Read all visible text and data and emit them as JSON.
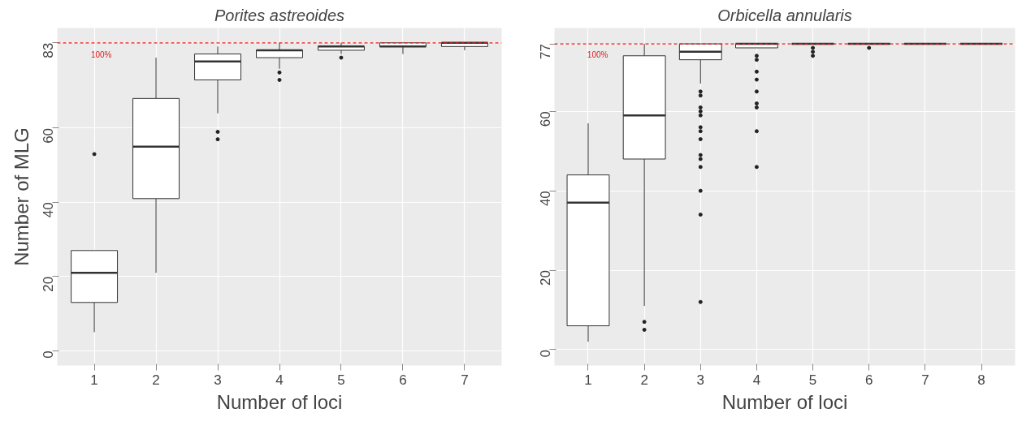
{
  "chart_data": [
    {
      "type": "box",
      "title": "Porites astreoides",
      "xlabel": "Number of loci",
      "ylabel": "Number of MLG",
      "categories": [
        "1",
        "2",
        "3",
        "4",
        "5",
        "6",
        "7"
      ],
      "boxes": [
        {
          "low": 5,
          "q1": 13,
          "median": 21,
          "q3": 27,
          "high": 27,
          "outliers": [
            53
          ]
        },
        {
          "low": 21,
          "q1": 41,
          "median": 55,
          "q3": 68,
          "high": 79
        },
        {
          "low": 64,
          "q1": 73,
          "median": 78,
          "q3": 80,
          "high": 82,
          "outliers": [
            59,
            57
          ]
        },
        {
          "low": 76,
          "q1": 79,
          "median": 81,
          "q3": 81,
          "high": 83,
          "outliers": [
            75,
            73
          ]
        },
        {
          "low": 80,
          "q1": 81,
          "median": 82,
          "q3": 82,
          "high": 83,
          "outliers": [
            79
          ]
        },
        {
          "low": 80,
          "q1": 82,
          "median": 82,
          "q3": 83,
          "high": 83
        },
        {
          "low": 81,
          "q1": 82,
          "median": 83,
          "q3": 83,
          "high": 83
        }
      ],
      "ylim": [
        -4,
        87
      ],
      "yticks": [
        0,
        20,
        40,
        60,
        83
      ],
      "grid": true,
      "annotations": [
        "100%"
      ],
      "ref_lines": [
        {
          "axis": "y",
          "value": 83,
          "color": "#e41a1c",
          "line_style": "dashed"
        }
      ]
    },
    {
      "type": "box",
      "title": "Orbicella annularis",
      "xlabel": "Number of loci",
      "categories": [
        "1",
        "2",
        "3",
        "4",
        "5",
        "6",
        "7",
        "8"
      ],
      "boxes": [
        {
          "low": 2,
          "q1": 6,
          "median": 37,
          "q3": 44,
          "high": 57
        },
        {
          "low": 11,
          "q1": 48,
          "median": 59,
          "q3": 74,
          "high": 77,
          "outliers": [
            7,
            5
          ]
        },
        {
          "low": 67,
          "q1": 73,
          "median": 75,
          "q3": 77,
          "high": 77,
          "outliers": [
            65,
            64,
            61,
            60,
            59,
            56,
            55,
            53,
            49,
            48,
            46,
            40,
            34,
            12
          ]
        },
        {
          "low": 76,
          "q1": 76,
          "median": 77,
          "q3": 77,
          "high": 77,
          "outliers": [
            74,
            73,
            70,
            68,
            65,
            62,
            61,
            55,
            46
          ]
        },
        {
          "low": 77,
          "q1": 77,
          "median": 77,
          "q3": 77,
          "high": 77,
          "outliers": [
            76,
            75,
            74
          ]
        },
        {
          "low": 77,
          "q1": 77,
          "median": 77,
          "q3": 77,
          "high": 77,
          "outliers": [
            76
          ]
        },
        {
          "low": 77,
          "q1": 77,
          "median": 77,
          "q3": 77,
          "high": 77
        },
        {
          "low": 77,
          "q1": 77,
          "median": 77,
          "q3": 77,
          "high": 77
        }
      ],
      "ylim": [
        -4,
        81
      ],
      "yticks": [
        0,
        20,
        40,
        60,
        77
      ],
      "grid": true,
      "annotations": [
        "100%"
      ],
      "ref_lines": [
        {
          "axis": "y",
          "value": 77,
          "color": "#e41a1c",
          "line_style": "dashed"
        }
      ]
    }
  ]
}
